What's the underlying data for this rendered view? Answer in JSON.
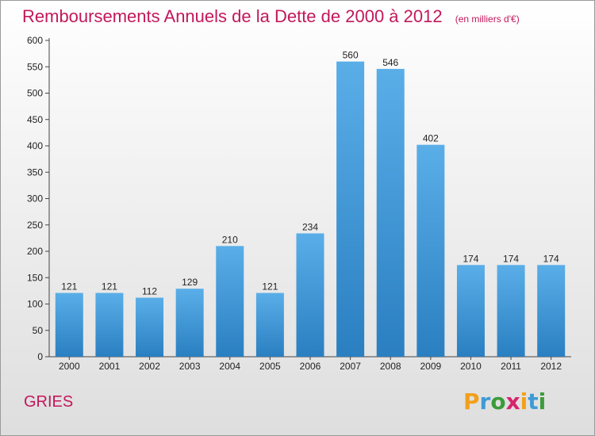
{
  "title": "Remboursements Annuels de la Dette de 2000 à 2012",
  "unit": "(en milliers d'€)",
  "commune": "GRIES",
  "logo": {
    "letters": [
      "P",
      "r",
      "o",
      "x",
      "i",
      "t",
      "i"
    ],
    "colors": [
      "#f2a01c",
      "#3f9bd6",
      "#3a9c3a",
      "#d6246e",
      "#f2a01c",
      "#3f9bd6",
      "#3a9c3a"
    ]
  },
  "colors": {
    "bar_top": "#5aaee8",
    "bar_bottom": "#2a7fc1",
    "title": "#c2185b"
  },
  "chart_data": {
    "type": "bar",
    "categories": [
      "2000",
      "2001",
      "2002",
      "2003",
      "2004",
      "2005",
      "2006",
      "2007",
      "2008",
      "2009",
      "2010",
      "2011",
      "2012"
    ],
    "values": [
      121,
      121,
      112,
      129,
      210,
      121,
      234,
      560,
      546,
      402,
      174,
      174,
      174
    ],
    "ylim": [
      0,
      600
    ],
    "yticks": [
      0,
      50,
      100,
      150,
      200,
      250,
      300,
      350,
      400,
      450,
      500,
      550,
      600
    ],
    "grid": false
  }
}
